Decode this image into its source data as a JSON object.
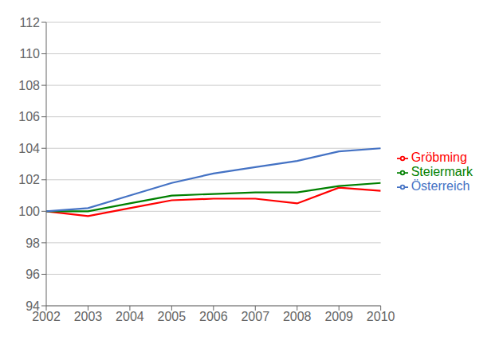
{
  "chart_data": {
    "type": "line",
    "x": [
      2002,
      2003,
      2004,
      2005,
      2006,
      2007,
      2008,
      2009,
      2010
    ],
    "xlim": [
      2002,
      2010
    ],
    "xticks": [
      2002,
      2003,
      2004,
      2005,
      2006,
      2007,
      2008,
      2009,
      2010
    ],
    "ylim": [
      94,
      112
    ],
    "yticks": [
      94,
      96,
      98,
      100,
      102,
      104,
      106,
      108,
      110,
      112
    ],
    "grid": "y",
    "legend": "right",
    "series": [
      {
        "name": "Gröbming",
        "color": "#FF0000",
        "values": [
          100.0,
          99.7,
          100.2,
          100.7,
          100.8,
          100.8,
          100.5,
          101.5,
          101.3
        ]
      },
      {
        "name": "Steiermark",
        "color": "#008000",
        "values": [
          100.0,
          100.0,
          100.5,
          101.0,
          101.1,
          101.2,
          101.2,
          101.6,
          101.8
        ]
      },
      {
        "name": "Österreich",
        "color": "#4472C4",
        "values": [
          100.0,
          100.2,
          101.0,
          101.8,
          102.4,
          102.8,
          103.2,
          103.8,
          104.0
        ]
      }
    ]
  }
}
